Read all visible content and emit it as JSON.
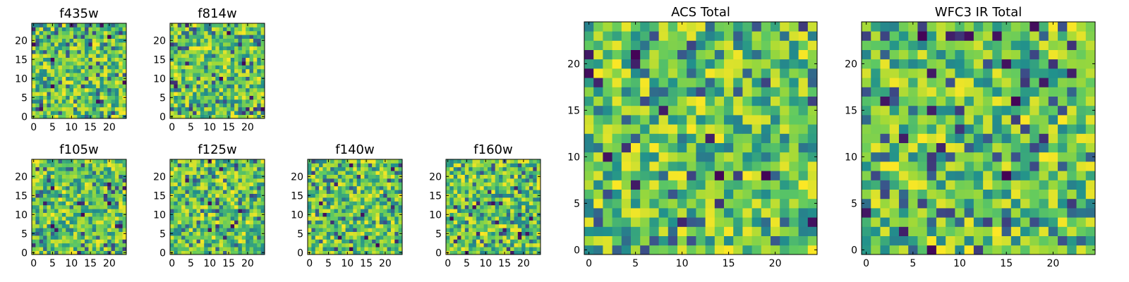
{
  "chart_data": [
    {
      "type": "heatmap",
      "title": "f435w",
      "x_ticks": [
        0,
        5,
        10,
        15,
        20
      ],
      "y_ticks": [
        0,
        5,
        10,
        15,
        20
      ],
      "xlim": [
        -0.5,
        24.5
      ],
      "ylim": [
        -0.5,
        24.5
      ],
      "grid_size": 25,
      "colormap": "viridis",
      "values_note": "per-pixel values not readable"
    },
    {
      "type": "heatmap",
      "title": "f814w",
      "x_ticks": [
        0,
        5,
        10,
        15,
        20
      ],
      "y_ticks": [
        0,
        5,
        10,
        15,
        20
      ],
      "xlim": [
        -0.5,
        24.5
      ],
      "ylim": [
        -0.5,
        24.5
      ],
      "grid_size": 25,
      "colormap": "viridis"
    },
    {
      "type": "heatmap",
      "title": "f105w",
      "x_ticks": [
        0,
        5,
        10,
        15,
        20
      ],
      "y_ticks": [
        0,
        5,
        10,
        15,
        20
      ],
      "xlim": [
        -0.5,
        24.5
      ],
      "ylim": [
        -0.5,
        24.5
      ],
      "grid_size": 25,
      "colormap": "viridis"
    },
    {
      "type": "heatmap",
      "title": "f125w",
      "x_ticks": [
        0,
        5,
        10,
        15,
        20
      ],
      "y_ticks": [
        0,
        5,
        10,
        15,
        20
      ],
      "xlim": [
        -0.5,
        24.5
      ],
      "ylim": [
        -0.5,
        24.5
      ],
      "grid_size": 25,
      "colormap": "viridis"
    },
    {
      "type": "heatmap",
      "title": "f140w",
      "x_ticks": [
        0,
        5,
        10,
        15,
        20
      ],
      "y_ticks": [
        0,
        5,
        10,
        15,
        20
      ],
      "xlim": [
        -0.5,
        24.5
      ],
      "ylim": [
        -0.5,
        24.5
      ],
      "grid_size": 25,
      "colormap": "viridis"
    },
    {
      "type": "heatmap",
      "title": "f160w",
      "x_ticks": [
        0,
        5,
        10,
        15,
        20
      ],
      "y_ticks": [
        0,
        5,
        10,
        15,
        20
      ],
      "xlim": [
        -0.5,
        24.5
      ],
      "ylim": [
        -0.5,
        24.5
      ],
      "grid_size": 25,
      "colormap": "viridis"
    },
    {
      "type": "heatmap",
      "title": "ACS Total",
      "x_ticks": [
        0,
        5,
        10,
        15,
        20
      ],
      "y_ticks": [
        0,
        5,
        10,
        15,
        20
      ],
      "xlim": [
        -0.5,
        24.5
      ],
      "ylim": [
        -0.5,
        24.5
      ],
      "grid_size": 25,
      "colormap": "viridis"
    },
    {
      "type": "heatmap",
      "title": "WFC3 IR Total",
      "x_ticks": [
        0,
        5,
        10,
        15,
        20
      ],
      "y_ticks": [
        0,
        5,
        10,
        15,
        20
      ],
      "xlim": [
        -0.5,
        24.5
      ],
      "ylim": [
        -0.5,
        24.5
      ],
      "grid_size": 25,
      "colormap": "viridis"
    }
  ],
  "colors": {
    "viridis": [
      "#440154",
      "#3b528b",
      "#21918c",
      "#5ec962",
      "#9fd938",
      "#fde725"
    ]
  }
}
